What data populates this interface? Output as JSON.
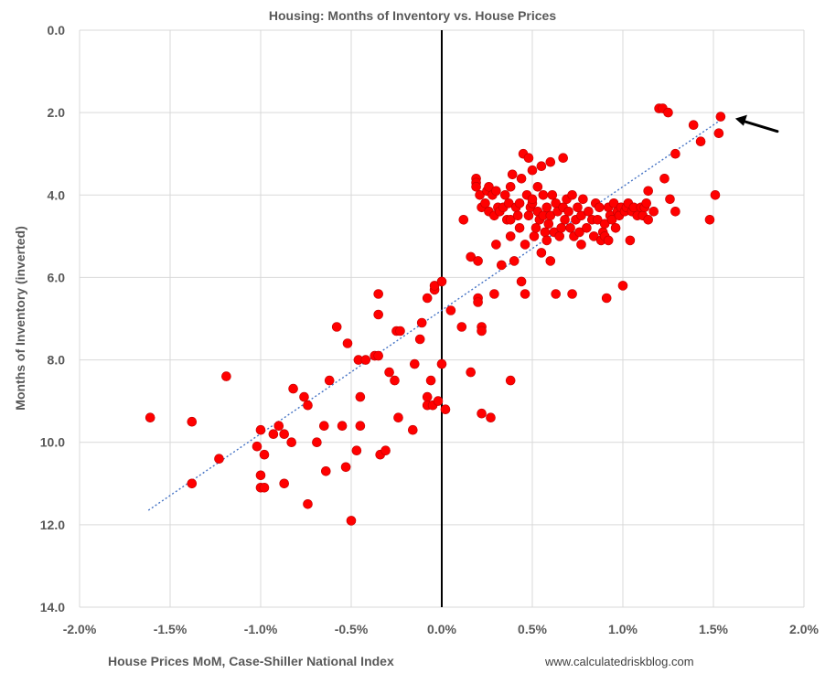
{
  "chart_data": {
    "type": "scatter",
    "title": "Housing: Months of Inventory vs. House Prices",
    "xlabel": "House Prices MoM, Case-Shiller National Index",
    "ylabel": "Months of Inventory (inverted)",
    "source": "www.calculatedriskblog.com",
    "xlim": [
      -2.0,
      2.0
    ],
    "ylim": [
      0.0,
      14.0
    ],
    "y_inverted": true,
    "grid": true,
    "legend": "none",
    "x_ticks": [
      "-2.0%",
      "-1.5%",
      "-1.0%",
      "-0.5%",
      "0.0%",
      "0.5%",
      "1.0%",
      "1.5%",
      "2.0%"
    ],
    "y_ticks": [
      "0.0",
      "2.0",
      "4.0",
      "6.0",
      "8.0",
      "10.0",
      "12.0",
      "14.0"
    ],
    "marker_color": "#ff0000",
    "trendline_color": "#4472c4",
    "trendline": {
      "x": [
        -1.62,
        1.55
      ],
      "y": [
        11.65,
        2.15
      ]
    },
    "annotation": {
      "type": "arrow",
      "points_to": [
        1.55,
        2.1
      ]
    },
    "points": [
      [
        -1.61,
        9.4
      ],
      [
        -1.38,
        9.5
      ],
      [
        -1.38,
        11.0
      ],
      [
        -1.19,
        8.4
      ],
      [
        -1.23,
        10.4
      ],
      [
        -1.02,
        10.1
      ],
      [
        -1.0,
        9.7
      ],
      [
        -1.0,
        10.8
      ],
      [
        -1.0,
        11.1
      ],
      [
        -0.98,
        11.1
      ],
      [
        -0.98,
        10.3
      ],
      [
        -0.93,
        9.8
      ],
      [
        -0.9,
        9.6
      ],
      [
        -0.87,
        9.8
      ],
      [
        -0.87,
        11.0
      ],
      [
        -0.83,
        10.0
      ],
      [
        -0.82,
        8.7
      ],
      [
        -0.76,
        8.9
      ],
      [
        -0.74,
        9.1
      ],
      [
        -0.74,
        11.5
      ],
      [
        -0.69,
        10.0
      ],
      [
        -0.65,
        9.6
      ],
      [
        -0.64,
        10.7
      ],
      [
        -0.62,
        8.5
      ],
      [
        -0.58,
        7.2
      ],
      [
        -0.55,
        9.6
      ],
      [
        -0.53,
        10.6
      ],
      [
        -0.52,
        7.6
      ],
      [
        -0.5,
        11.9
      ],
      [
        -0.47,
        10.2
      ],
      [
        -0.46,
        8.0
      ],
      [
        -0.45,
        9.6
      ],
      [
        -0.45,
        8.9
      ],
      [
        -0.42,
        8.0
      ],
      [
        -0.37,
        7.9
      ],
      [
        -0.35,
        7.9
      ],
      [
        -0.35,
        6.4
      ],
      [
        -0.35,
        6.9
      ],
      [
        -0.34,
        10.3
      ],
      [
        -0.31,
        10.2
      ],
      [
        -0.29,
        8.3
      ],
      [
        -0.26,
        8.5
      ],
      [
        -0.25,
        7.3
      ],
      [
        -0.24,
        9.4
      ],
      [
        -0.23,
        7.3
      ],
      [
        -0.16,
        9.7
      ],
      [
        -0.15,
        8.1
      ],
      [
        -0.12,
        7.5
      ],
      [
        -0.11,
        7.1
      ],
      [
        -0.08,
        6.5
      ],
      [
        -0.08,
        8.9
      ],
      [
        -0.08,
        9.1
      ],
      [
        -0.06,
        8.5
      ],
      [
        -0.05,
        9.1
      ],
      [
        -0.04,
        6.3
      ],
      [
        -0.04,
        6.2
      ],
      [
        -0.02,
        9.0
      ],
      [
        0.0,
        6.1
      ],
      [
        0.0,
        8.1
      ],
      [
        0.02,
        9.2
      ],
      [
        0.05,
        6.8
      ],
      [
        0.11,
        7.2
      ],
      [
        0.12,
        4.6
      ],
      [
        0.16,
        8.3
      ],
      [
        0.16,
        5.5
      ],
      [
        0.19,
        3.6
      ],
      [
        0.19,
        3.7
      ],
      [
        0.19,
        3.8
      ],
      [
        0.2,
        6.5
      ],
      [
        0.2,
        6.6
      ],
      [
        0.2,
        5.6
      ],
      [
        0.21,
        4.0
      ],
      [
        0.22,
        4.3
      ],
      [
        0.22,
        7.2
      ],
      [
        0.22,
        7.3
      ],
      [
        0.22,
        9.3
      ],
      [
        0.24,
        4.2
      ],
      [
        0.25,
        3.9
      ],
      [
        0.26,
        4.4
      ],
      [
        0.26,
        3.8
      ],
      [
        0.27,
        9.4
      ],
      [
        0.28,
        4.0
      ],
      [
        0.29,
        4.5
      ],
      [
        0.29,
        6.4
      ],
      [
        0.3,
        5.2
      ],
      [
        0.3,
        3.9
      ],
      [
        0.31,
        4.3
      ],
      [
        0.32,
        4.4
      ],
      [
        0.33,
        5.7
      ],
      [
        0.34,
        4.3
      ],
      [
        0.35,
        4.0
      ],
      [
        0.36,
        4.6
      ],
      [
        0.37,
        4.2
      ],
      [
        0.38,
        4.6
      ],
      [
        0.38,
        3.8
      ],
      [
        0.38,
        5.0
      ],
      [
        0.38,
        8.5
      ],
      [
        0.39,
        3.5
      ],
      [
        0.4,
        5.6
      ],
      [
        0.41,
        4.3
      ],
      [
        0.42,
        4.5
      ],
      [
        0.43,
        4.2
      ],
      [
        0.43,
        4.8
      ],
      [
        0.44,
        6.1
      ],
      [
        0.44,
        3.6
      ],
      [
        0.45,
        3.0
      ],
      [
        0.46,
        5.2
      ],
      [
        0.46,
        6.4
      ],
      [
        0.47,
        4.0
      ],
      [
        0.48,
        4.5
      ],
      [
        0.48,
        3.1
      ],
      [
        0.49,
        4.3
      ],
      [
        0.5,
        4.2
      ],
      [
        0.5,
        3.4
      ],
      [
        0.5,
        4.1
      ],
      [
        0.51,
        5.0
      ],
      [
        0.52,
        4.8
      ],
      [
        0.53,
        4.4
      ],
      [
        0.53,
        3.8
      ],
      [
        0.54,
        4.6
      ],
      [
        0.55,
        3.3
      ],
      [
        0.55,
        5.4
      ],
      [
        0.56,
        4.5
      ],
      [
        0.56,
        4.0
      ],
      [
        0.57,
        4.9
      ],
      [
        0.58,
        4.3
      ],
      [
        0.58,
        5.1
      ],
      [
        0.59,
        4.7
      ],
      [
        0.6,
        5.6
      ],
      [
        0.6,
        3.2
      ],
      [
        0.6,
        4.5
      ],
      [
        0.61,
        4.0
      ],
      [
        0.62,
        4.9
      ],
      [
        0.63,
        6.4
      ],
      [
        0.63,
        4.2
      ],
      [
        0.64,
        4.4
      ],
      [
        0.65,
        5.0
      ],
      [
        0.66,
        4.8
      ],
      [
        0.67,
        3.1
      ],
      [
        0.67,
        4.3
      ],
      [
        0.68,
        4.6
      ],
      [
        0.69,
        4.1
      ],
      [
        0.7,
        4.4
      ],
      [
        0.71,
        4.8
      ],
      [
        0.72,
        4.0
      ],
      [
        0.72,
        6.4
      ],
      [
        0.73,
        5.0
      ],
      [
        0.74,
        4.6
      ],
      [
        0.75,
        4.3
      ],
      [
        0.76,
        4.9
      ],
      [
        0.77,
        4.5
      ],
      [
        0.77,
        5.2
      ],
      [
        0.78,
        4.1
      ],
      [
        0.8,
        4.8
      ],
      [
        0.81,
        4.4
      ],
      [
        0.83,
        4.6
      ],
      [
        0.84,
        5.0
      ],
      [
        0.85,
        4.2
      ],
      [
        0.86,
        4.6
      ],
      [
        0.87,
        4.3
      ],
      [
        0.88,
        5.1
      ],
      [
        0.89,
        4.9
      ],
      [
        0.9,
        4.7
      ],
      [
        0.9,
        5.0
      ],
      [
        0.91,
        6.5
      ],
      [
        0.92,
        4.3
      ],
      [
        0.92,
        5.1
      ],
      [
        0.93,
        4.5
      ],
      [
        0.94,
        4.6
      ],
      [
        0.95,
        4.2
      ],
      [
        0.96,
        4.8
      ],
      [
        0.97,
        4.4
      ],
      [
        0.98,
        4.5
      ],
      [
        0.99,
        4.3
      ],
      [
        1.0,
        6.2
      ],
      [
        1.01,
        4.4
      ],
      [
        1.02,
        4.3
      ],
      [
        1.03,
        4.2
      ],
      [
        1.04,
        5.1
      ],
      [
        1.05,
        4.4
      ],
      [
        1.06,
        4.3
      ],
      [
        1.08,
        4.5
      ],
      [
        1.1,
        4.3
      ],
      [
        1.11,
        4.5
      ],
      [
        1.12,
        4.3
      ],
      [
        1.13,
        4.2
      ],
      [
        1.14,
        3.9
      ],
      [
        1.14,
        4.6
      ],
      [
        1.17,
        4.4
      ],
      [
        1.2,
        1.9
      ],
      [
        1.22,
        1.9
      ],
      [
        1.23,
        3.6
      ],
      [
        1.25,
        2.0
      ],
      [
        1.26,
        4.1
      ],
      [
        1.29,
        4.4
      ],
      [
        1.29,
        3.0
      ],
      [
        1.39,
        2.3
      ],
      [
        1.43,
        2.7
      ],
      [
        1.48,
        4.6
      ],
      [
        1.51,
        4.0
      ],
      [
        1.53,
        2.5
      ],
      [
        1.54,
        2.1
      ]
    ]
  }
}
